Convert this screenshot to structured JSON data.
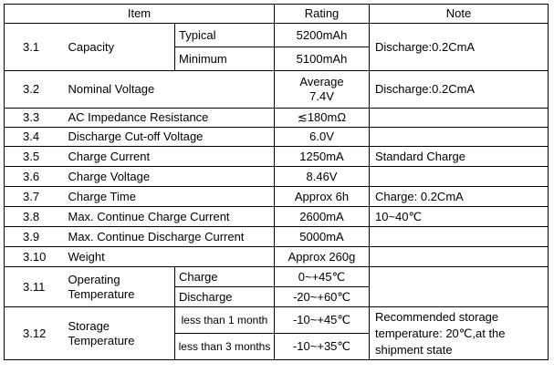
{
  "header": {
    "item": "Item",
    "rating": "Rating",
    "note": "Note"
  },
  "rows": {
    "r3_1": {
      "num": "3.1",
      "label": "Capacity",
      "sub1": "Typical",
      "rating1": "5200mAh",
      "sub2": "Minimum",
      "rating2": "5100mAh",
      "note": "Discharge:0.2CmA"
    },
    "r3_2": {
      "num": "3.2",
      "label": "Nominal Voltage",
      "rating_line1": "Average",
      "rating_line2": "7.4V",
      "note": "Discharge:0.2CmA"
    },
    "r3_3": {
      "num": "3.3",
      "label": "AC Impedance Resistance",
      "rating": "≲180mΩ",
      "note": ""
    },
    "r3_4": {
      "num": "3.4",
      "label": "Discharge Cut-off Voltage",
      "rating": "6.0V",
      "note": ""
    },
    "r3_5": {
      "num": "3.5",
      "label": "Charge Current",
      "rating": "1250mA",
      "note": "Standard Charge"
    },
    "r3_6": {
      "num": "3.6",
      "label": "Charge Voltage",
      "rating": "8.46V",
      "note": ""
    },
    "r3_7": {
      "num": "3.7",
      "label": "Charge Time",
      "rating": "Approx 6h",
      "note": "Charge: 0.2CmA"
    },
    "r3_8": {
      "num": "3.8",
      "label": "Max. Continue Charge Current",
      "rating": "2600mA",
      "note": "10~40℃"
    },
    "r3_9": {
      "num": "3.9",
      "label": "Max. Continue Discharge Current",
      "rating": "5000mA",
      "note": ""
    },
    "r3_10": {
      "num": "3.10",
      "label": "Weight",
      "rating": "Approx 260g",
      "note": ""
    },
    "r3_11": {
      "num": "3.11",
      "label_line1": "Operating",
      "label_line2": "Temperature",
      "sub1": "Charge",
      "rating1": "0~+45℃",
      "sub2": "Discharge",
      "rating2": "-20~+60℃",
      "note": ""
    },
    "r3_12": {
      "num": "3.12",
      "label_line1": "Storage",
      "label_line2": "Temperature",
      "sub1": "less than 1 month",
      "rating1": "-10~+45℃",
      "sub2": "less than 3 months",
      "rating2": "-10~+35℃",
      "note": "Recommended storage temperature: 20℃,at the shipment state"
    }
  }
}
